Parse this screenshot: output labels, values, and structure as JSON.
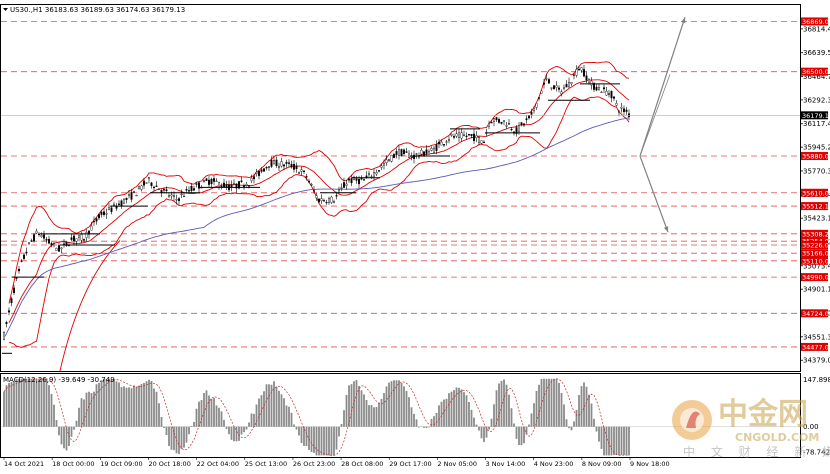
{
  "header": {
    "symbol_line": "US30.,H1  36183.63 36189.63 36174.63 36179.13",
    "symbol_icon": "triangle-down-icon"
  },
  "chart_data": {
    "type": "candlestick",
    "symbol": "US30.",
    "timeframe": "H1",
    "ohlc_last": {
      "open": 36183.63,
      "high": 36189.63,
      "low": 36174.63,
      "close": 36179.13
    },
    "current_price": 36179.13,
    "ylim": [
      34300,
      36990
    ],
    "y_ticks": [
      36814.4,
      36639.5,
      36464.7,
      36292.35,
      36117.45,
      35945.2,
      35770.3,
      35595.4,
      35423.15,
      35248.25,
      35073.4,
      34901.1,
      34726.2,
      34551.3,
      34379.05
    ],
    "x_tick_labels": [
      "14 Oct 2021",
      "18 Oct 00:00",
      "19 Oct 09:00",
      "20 Oct 18:00",
      "22 Oct 04:00",
      "25 Oct 13:00",
      "26 Oct 23:00",
      "28 Oct 08:00",
      "29 Oct 17:00",
      "2 Nov 05:00",
      "3 Nov 14:00",
      "4 Nov 23:00",
      "8 Nov 09:00",
      "9 Nov 18:00"
    ],
    "levels": [
      {
        "value": 36869.0,
        "label": "36869.00"
      },
      {
        "value": 36500.0,
        "label": "36500.00"
      },
      {
        "value": 35880.0,
        "label": "35880.00"
      },
      {
        "value": 35610.0,
        "label": "35610.00"
      },
      {
        "value": 35512.12,
        "label": "35512.12"
      },
      {
        "value": 35308.23,
        "label": "35308.23"
      },
      {
        "value": 35254.0,
        "label": "35254.00"
      },
      {
        "value": 35226.0,
        "label": "35226.00"
      },
      {
        "value": 35166.0,
        "label": "35166.00"
      },
      {
        "value": 35110.0,
        "label": "35110.00"
      },
      {
        "value": 34990.0,
        "label": "34990.00"
      },
      {
        "value": 34724.0,
        "label": "34724.00"
      },
      {
        "value": 34477.0,
        "label": "34477.00"
      }
    ],
    "macd": {
      "label": "MACD(12,26,9) -39.649 -30.749",
      "value": -39.649,
      "signal": -30.749,
      "y_ticks": [
        147.898,
        0.0,
        -78.742
      ],
      "ylim": [
        -95,
        165
      ]
    },
    "colors": {
      "candle": "#000000",
      "bollinger": "#e00000",
      "ma": "#5a5ab8",
      "level_line": "#e05050",
      "level_tag": "#e00000",
      "price_tag": "#000000",
      "arrow": "#808080"
    }
  },
  "watermark": {
    "brand": "中金网",
    "url": "CNGOLD.COM",
    "tagline": "中 文 财 经 新 媒 体"
  }
}
